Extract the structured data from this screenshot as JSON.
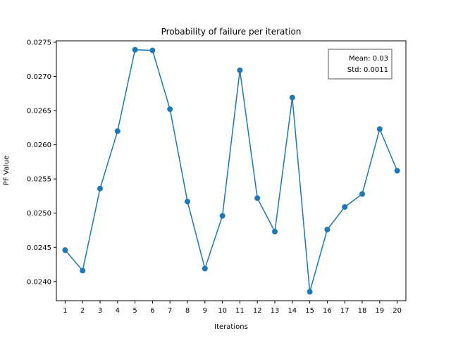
{
  "chart_data": {
    "type": "line",
    "title": "Probability of failure per iteration",
    "xlabel": "Iterations",
    "ylabel": "PF Value",
    "x": [
      1,
      2,
      3,
      4,
      5,
      6,
      7,
      8,
      9,
      10,
      11,
      12,
      13,
      14,
      15,
      16,
      17,
      18,
      19,
      20
    ],
    "series": [
      {
        "values": [
          0.02446,
          0.02416,
          0.02536,
          0.0262,
          0.02739,
          0.02738,
          0.02652,
          0.02517,
          0.02419,
          0.02496,
          0.02709,
          0.02522,
          0.02473,
          0.02669,
          0.02385,
          0.02476,
          0.02509,
          0.02528,
          0.02623,
          0.02562
        ],
        "color": "#1f77b4",
        "marker": "circle"
      }
    ],
    "xlim": [
      0.5,
      20.5
    ],
    "ylim": [
      0.02372,
      0.02752
    ],
    "yticks": [
      0.024,
      0.0245,
      0.025,
      0.0255,
      0.026,
      0.0265,
      0.027,
      0.0275
    ],
    "ytick_labels": [
      "0.0240",
      "0.0245",
      "0.0250",
      "0.0255",
      "0.0260",
      "0.0265",
      "0.0270",
      "0.0275"
    ],
    "xticks": [
      1,
      2,
      3,
      4,
      5,
      6,
      7,
      8,
      9,
      10,
      11,
      12,
      13,
      14,
      15,
      16,
      17,
      18,
      19,
      20
    ],
    "xtick_labels": [
      "1",
      "2",
      "3",
      "4",
      "5",
      "6",
      "7",
      "8",
      "9",
      "10",
      "11",
      "12",
      "13",
      "14",
      "15",
      "16",
      "17",
      "18",
      "19",
      "20"
    ],
    "grid": false,
    "annotation": {
      "lines": [
        "Mean: 0.03",
        "Std: 0.0011"
      ],
      "position": "top-right"
    }
  }
}
